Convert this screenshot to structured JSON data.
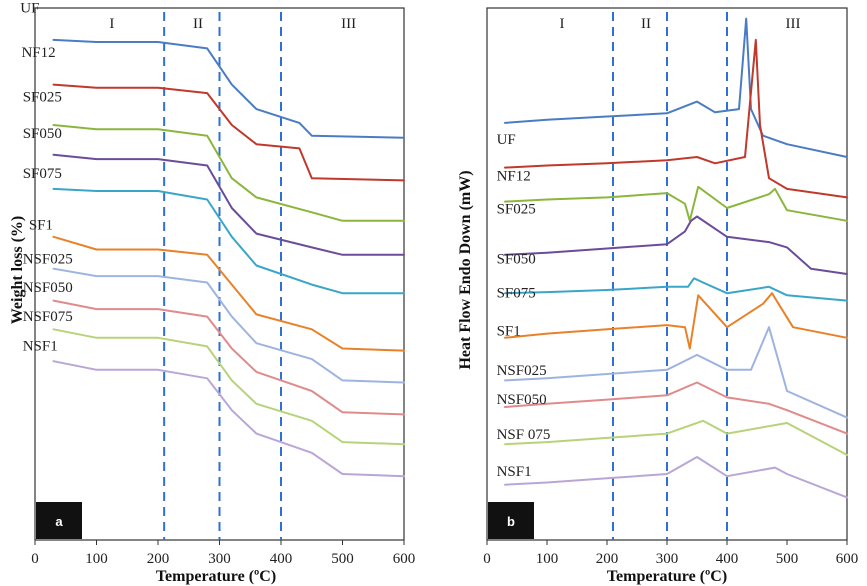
{
  "chart_data": [
    {
      "type": "line",
      "panel_label": "a",
      "xlabel": "Temperature (ºC)",
      "ylabel": "Weight loss (%)",
      "xlim": [
        0,
        600
      ],
      "xticks": [
        "0",
        "100",
        "200",
        "300",
        "400",
        "500",
        "600"
      ],
      "regions": [
        "I",
        "II",
        "III"
      ],
      "region_boundaries": [
        210,
        300,
        400
      ],
      "series": [
        {
          "name": "UF",
          "color": "#4a7cc4",
          "x": [
            30,
            100,
            200,
            280,
            320,
            360,
            430,
            450,
            600
          ],
          "y": [
            -30,
            -32,
            -32,
            -38,
            -72,
            -95,
            -108,
            -120,
            -122
          ]
        },
        {
          "name": "NF12",
          "color": "#c0392b",
          "x": [
            30,
            100,
            200,
            280,
            320,
            360,
            430,
            450,
            600
          ],
          "y": [
            -72,
            -75,
            -75,
            -80,
            -110,
            -128,
            -132,
            -160,
            -162
          ]
        },
        {
          "name": "SF025",
          "color": "#8bb63d",
          "x": [
            30,
            100,
            200,
            280,
            320,
            360,
            450,
            500,
            600
          ],
          "y": [
            -110,
            -114,
            -114,
            -120,
            -160,
            -178,
            -192,
            -200,
            -200
          ]
        },
        {
          "name": "SF050",
          "color": "#6b4c9a",
          "x": [
            30,
            100,
            200,
            280,
            320,
            360,
            450,
            500,
            600
          ],
          "y": [
            -138,
            -142,
            -142,
            -148,
            -188,
            -212,
            -225,
            -232,
            -232
          ]
        },
        {
          "name": "SF075",
          "color": "#3aa6c7",
          "x": [
            30,
            100,
            200,
            280,
            320,
            360,
            450,
            500,
            600
          ],
          "y": [
            -170,
            -172,
            -172,
            -180,
            -215,
            -242,
            -260,
            -268,
            -268
          ]
        },
        {
          "name": "SF1",
          "color": "#e8822a",
          "x": [
            30,
            100,
            200,
            280,
            320,
            360,
            450,
            500,
            600
          ],
          "y": [
            -215,
            -227,
            -227,
            -232,
            -260,
            -288,
            -302,
            -320,
            -322
          ]
        },
        {
          "name": "NSF025",
          "color": "#9eb4e0",
          "x": [
            30,
            100,
            200,
            280,
            320,
            360,
            450,
            500,
            600
          ],
          "y": [
            -245,
            -252,
            -252,
            -258,
            -290,
            -315,
            -330,
            -350,
            -352
          ]
        },
        {
          "name": "NSF050",
          "color": "#e08b8b",
          "x": [
            30,
            100,
            200,
            280,
            320,
            360,
            450,
            500,
            600
          ],
          "y": [
            -275,
            -283,
            -283,
            -290,
            -320,
            -342,
            -360,
            -380,
            -382
          ]
        },
        {
          "name": "NSF075",
          "color": "#b7d37a",
          "x": [
            30,
            100,
            200,
            280,
            320,
            360,
            450,
            500,
            600
          ],
          "y": [
            -302,
            -310,
            -310,
            -318,
            -350,
            -372,
            -388,
            -408,
            -410
          ]
        },
        {
          "name": "NSF1",
          "color": "#b9a6d6",
          "x": [
            30,
            100,
            200,
            280,
            320,
            360,
            450,
            500,
            600
          ],
          "y": [
            -332,
            -340,
            -340,
            -348,
            -378,
            -400,
            -418,
            -438,
            -440
          ]
        }
      ]
    },
    {
      "type": "line",
      "panel_label": "b",
      "xlabel": "Temperature (ºC)",
      "ylabel": "Heat Flow Endo Down (mW)",
      "xlim": [
        0,
        600
      ],
      "xticks": [
        "0",
        "100",
        "200",
        "300",
        "400",
        "500",
        "600"
      ],
      "regions": [
        "I",
        "II",
        "III"
      ],
      "region_boundaries": [
        210,
        300,
        400
      ],
      "series": [
        {
          "name": "UF",
          "color": "#4a7cc4",
          "x": [
            30,
            100,
            200,
            300,
            350,
            380,
            420,
            432,
            440,
            460,
            500,
            600
          ],
          "y": [
            -108,
            -105,
            -102,
            -99,
            -88,
            -98,
            -95,
            -10,
            -95,
            -120,
            -128,
            -140
          ]
        },
        {
          "name": "NF12",
          "color": "#c0392b",
          "x": [
            30,
            100,
            200,
            300,
            350,
            380,
            430,
            448,
            455,
            470,
            500,
            600
          ],
          "y": [
            -150,
            -148,
            -146,
            -143,
            -140,
            -146,
            -140,
            -30,
            -110,
            -160,
            -170,
            -178
          ]
        },
        {
          "name": "SF025",
          "color": "#8bb63d",
          "x": [
            30,
            100,
            200,
            300,
            330,
            338,
            352,
            400,
            470,
            480,
            500,
            600
          ],
          "y": [
            -182,
            -180,
            -178,
            -174,
            -184,
            -200,
            -168,
            -188,
            -175,
            -170,
            -190,
            -200
          ]
        },
        {
          "name": "SF050",
          "color": "#6b4c9a",
          "x": [
            30,
            100,
            200,
            300,
            330,
            340,
            350,
            400,
            470,
            500,
            540,
            600
          ],
          "y": [
            -232,
            -230,
            -226,
            -222,
            -210,
            -200,
            -196,
            -215,
            -220,
            -225,
            -245,
            -250
          ]
        },
        {
          "name": "SF075",
          "color": "#3aa6c7",
          "x": [
            30,
            100,
            200,
            300,
            335,
            345,
            360,
            400,
            470,
            500,
            600
          ],
          "y": [
            -268,
            -267,
            -265,
            -262,
            -262,
            -254,
            -258,
            -268,
            -262,
            -270,
            -275
          ]
        },
        {
          "name": "SF1",
          "color": "#e8822a",
          "x": [
            30,
            100,
            200,
            300,
            330,
            338,
            352,
            400,
            460,
            475,
            510,
            600
          ],
          "y": [
            -310,
            -306,
            -302,
            -298,
            -300,
            -320,
            -270,
            -300,
            -278,
            -268,
            -300,
            -310
          ]
        },
        {
          "name": "NSF025",
          "color": "#9eb4e0",
          "x": [
            30,
            100,
            200,
            300,
            350,
            400,
            440,
            470,
            500,
            600
          ],
          "y": [
            -350,
            -348,
            -344,
            -340,
            -326,
            -340,
            -340,
            -300,
            -360,
            -385
          ]
        },
        {
          "name": "NSF050",
          "color": "#e08b8b",
          "x": [
            30,
            100,
            200,
            300,
            350,
            400,
            470,
            500,
            600
          ],
          "y": [
            -375,
            -372,
            -368,
            -364,
            -352,
            -366,
            -372,
            -378,
            -400
          ]
        },
        {
          "name": "NSF 075",
          "color": "#b7d37a",
          "x": [
            30,
            100,
            200,
            300,
            340,
            360,
            400,
            500,
            600
          ],
          "y": [
            -410,
            -408,
            -404,
            -400,
            -392,
            -388,
            -400,
            -390,
            -420
          ]
        },
        {
          "name": "NSF1",
          "color": "#b9a6d6",
          "x": [
            30,
            100,
            200,
            300,
            350,
            400,
            480,
            500,
            600
          ],
          "y": [
            -448,
            -446,
            -442,
            -438,
            -422,
            -440,
            -432,
            -438,
            -460
          ]
        }
      ]
    }
  ]
}
